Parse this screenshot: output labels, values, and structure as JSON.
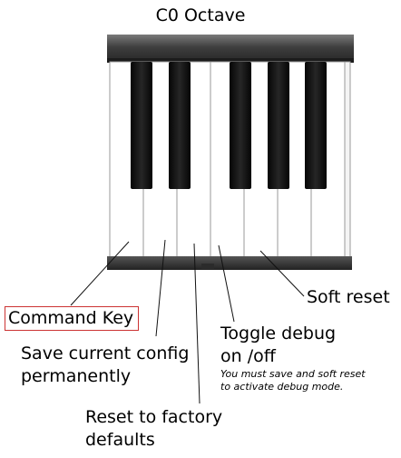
{
  "title": "C0 Octave",
  "labels": {
    "command_key": "Command Key",
    "save_config_line1": "Save current config",
    "save_config_line2": "permanently",
    "reset_line1": "Reset to factory",
    "reset_line2": "defaults",
    "debug_line1": "Toggle debug",
    "debug_line2": "on /off",
    "debug_note_line1": "You must save and soft reset",
    "debug_note_line2": "to activate debug mode.",
    "soft_reset": "Soft reset"
  },
  "colors": {
    "command_key_border": "#cc3333",
    "black_key": "#111111",
    "white_key": "#ffffff",
    "keyboard_frame": "#4a4a4a"
  }
}
